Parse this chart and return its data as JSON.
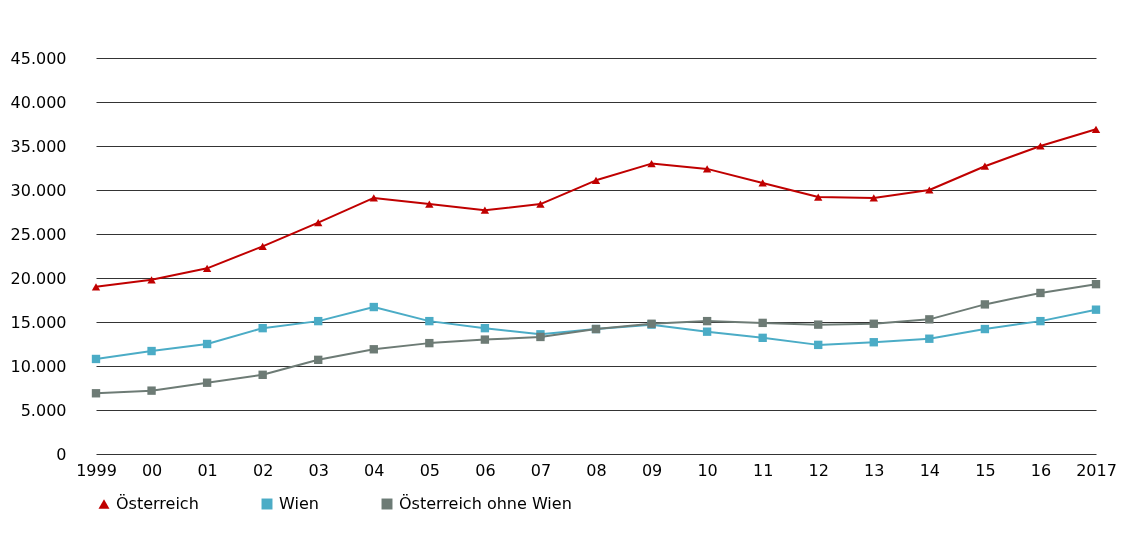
{
  "chart_data": {
    "type": "line",
    "categories": [
      "1999",
      "00",
      "01",
      "02",
      "03",
      "04",
      "05",
      "06",
      "07",
      "08",
      "09",
      "10",
      "11",
      "12",
      "13",
      "14",
      "15",
      "16",
      "2017"
    ],
    "ylim": [
      0,
      45000
    ],
    "yticks": [
      0,
      {
        "value": 5000,
        "label": "5.000"
      },
      {
        "value": 10000,
        "label": "10.000"
      },
      {
        "value": 15000,
        "label": "15.000"
      },
      {
        "value": 20000,
        "label": "20.000"
      },
      {
        "value": 25000,
        "label": "25.000"
      },
      {
        "value": 30000,
        "label": "30.000"
      },
      {
        "value": 35000,
        "label": "35.000"
      },
      {
        "value": 40000,
        "label": "40.000"
      },
      {
        "value": 45000,
        "label": "45.000"
      }
    ],
    "grid": "y",
    "legend": "bottom",
    "marker": "square",
    "line_style": "solid",
    "series": [
      {
        "name": "Österreich",
        "color": "#c00000",
        "marker": "triangle",
        "values": [
          19000,
          19800,
          21100,
          23600,
          26300,
          29100,
          28400,
          27700,
          28400,
          31100,
          33000,
          32400,
          30800,
          29200,
          29100,
          30000,
          32700,
          35000,
          36900
        ]
      },
      {
        "name": "Wien",
        "color": "#4bacc6",
        "values": [
          10800,
          11700,
          12500,
          14300,
          15100,
          16700,
          15100,
          14300,
          13600,
          14200,
          14700,
          13900,
          13200,
          12400,
          12700,
          13100,
          14200,
          15100,
          16400
        ]
      },
      {
        "name": "Österreich ohne Wien",
        "color": "#6d7b75",
        "values": [
          6900,
          7200,
          8100,
          9000,
          10700,
          11900,
          12600,
          13000,
          13300,
          14200,
          14800,
          15100,
          14900,
          14700,
          14800,
          15300,
          17000,
          18300,
          19300
        ]
      }
    ]
  }
}
